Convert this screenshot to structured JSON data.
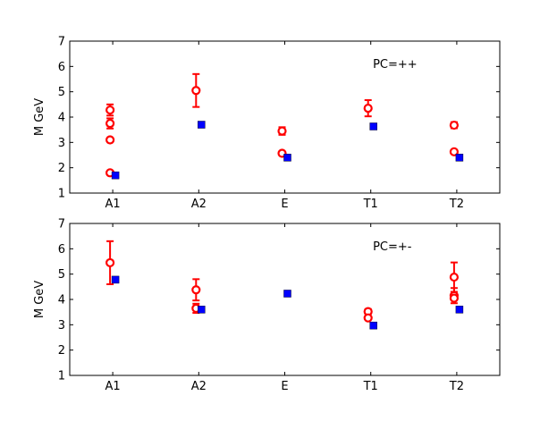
{
  "colors": {
    "hollow_series": "#ff0000",
    "filled_series": "#0000ff",
    "axes": "#000000",
    "background": "#ffffff"
  },
  "chart_data": [
    {
      "type": "scatter",
      "annotation": "PC=++",
      "ylabel": "M GeV",
      "xlabel": "",
      "categories": [
        "A1",
        "A2",
        "E",
        "T1",
        "T2"
      ],
      "ylim": [
        1,
        7
      ],
      "yticks": [
        1,
        2,
        3,
        4,
        5,
        6,
        7
      ],
      "grid": false,
      "series": [
        {
          "marker": "hollow-circle",
          "color": "#ff0000",
          "points": [
            {
              "x": "A1",
              "y": 4.28,
              "err": 0.22
            },
            {
              "x": "A1",
              "y": 3.75,
              "err": 0.2
            },
            {
              "x": "A1",
              "y": 3.1,
              "err": 0
            },
            {
              "x": "A1",
              "y": 1.8,
              "err": 0
            },
            {
              "x": "A2",
              "y": 5.05,
              "err": 0.65
            },
            {
              "x": "E",
              "y": 3.45,
              "err": 0.15
            },
            {
              "x": "E",
              "y": 2.57,
              "err": 0
            },
            {
              "x": "T1",
              "y": 4.35,
              "err": 0.32
            },
            {
              "x": "T2",
              "y": 3.68,
              "err": 0.12
            },
            {
              "x": "T2",
              "y": 2.63,
              "err": 0
            }
          ]
        },
        {
          "marker": "filled-square",
          "color": "#0000ff",
          "points": [
            {
              "x": "A1",
              "y": 1.7
            },
            {
              "x": "A2",
              "y": 3.7
            },
            {
              "x": "E",
              "y": 2.4
            },
            {
              "x": "T1",
              "y": 3.63
            },
            {
              "x": "T2",
              "y": 2.4
            }
          ]
        }
      ]
    },
    {
      "type": "scatter",
      "annotation": "PC=+-",
      "ylabel": "M GeV",
      "xlabel": "",
      "categories": [
        "A1",
        "A2",
        "E",
        "T1",
        "T2"
      ],
      "ylim": [
        1,
        7
      ],
      "yticks": [
        1,
        2,
        3,
        4,
        5,
        6,
        7
      ],
      "grid": false,
      "series": [
        {
          "marker": "hollow-circle",
          "color": "#ff0000",
          "points": [
            {
              "x": "A1",
              "y": 5.45,
              "err": 0.85
            },
            {
              "x": "A2",
              "y": 4.38,
              "err": 0.42
            },
            {
              "x": "A2",
              "y": 3.65,
              "err": 0.18
            },
            {
              "x": "T1",
              "y": 3.52,
              "err": 0.1
            },
            {
              "x": "T1",
              "y": 3.27,
              "err": 0
            },
            {
              "x": "T2",
              "y": 4.88,
              "err": 0.58
            },
            {
              "x": "T2",
              "y": 4.15,
              "err": 0.3
            },
            {
              "x": "T2",
              "y": 4.05,
              "err": 0
            }
          ]
        },
        {
          "marker": "filled-square",
          "color": "#0000ff",
          "points": [
            {
              "x": "A1",
              "y": 4.78
            },
            {
              "x": "A2",
              "y": 3.6
            },
            {
              "x": "E",
              "y": 4.23
            },
            {
              "x": "T1",
              "y": 2.97
            },
            {
              "x": "T2",
              "y": 3.6
            }
          ]
        }
      ]
    }
  ]
}
